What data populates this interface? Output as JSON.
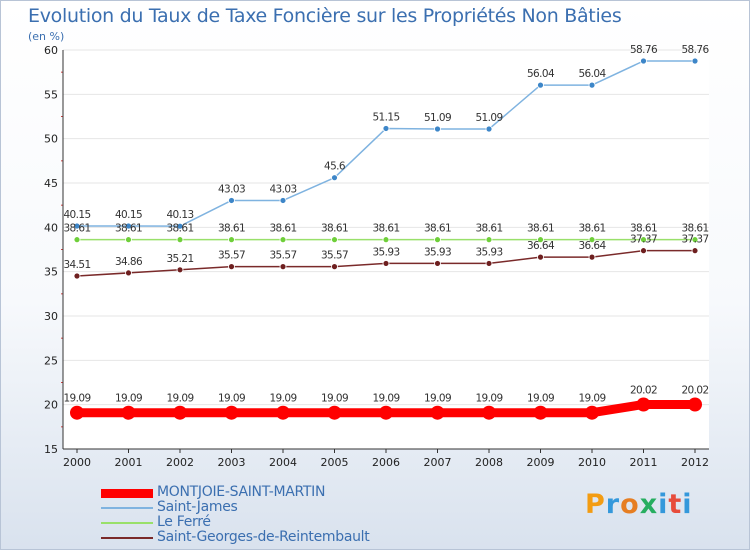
{
  "chart_data": {
    "type": "line",
    "title": "Evolution du Taux de Taxe Foncière sur les Propriétés Non Bâties",
    "ylabel": "(en %)",
    "xlabel": "",
    "ylim": [
      15,
      60
    ],
    "yticks": [
      15,
      20,
      25,
      30,
      35,
      40,
      45,
      50,
      55,
      60
    ],
    "categories": [
      "2000",
      "2001",
      "2002",
      "2003",
      "2004",
      "2005",
      "2006",
      "2007",
      "2008",
      "2009",
      "2010",
      "2011",
      "2012"
    ],
    "series": [
      {
        "name": "MONTJOIE-SAINT-MARTIN",
        "color": "#ff0000",
        "emphasis": true,
        "values": [
          19.09,
          19.09,
          19.09,
          19.09,
          19.09,
          19.09,
          19.09,
          19.09,
          19.09,
          19.09,
          19.09,
          20.02,
          20.02
        ],
        "labels": [
          "19.09",
          "19.09",
          "19.09",
          "19.09",
          "19.09",
          "19.09",
          "19.09",
          "19.09",
          "19.09",
          "19.09",
          "19.09",
          "20.02",
          "20.02"
        ]
      },
      {
        "name": "Saint-James",
        "color": "#7fb3e0",
        "marker": "#3d86c8",
        "values": [
          40.15,
          40.15,
          40.13,
          43.03,
          43.03,
          45.6,
          51.15,
          51.09,
          51.09,
          56.04,
          56.04,
          58.76,
          58.76
        ],
        "labels": [
          "40.15",
          "40.15",
          "40.13",
          "43.03",
          "43.03",
          "45.6",
          "51.15",
          "51.09",
          "51.09",
          "56.04",
          "56.04",
          "58.76",
          "58.76"
        ]
      },
      {
        "name": "Le Ferré",
        "color": "#99e06a",
        "marker": "#6fcf3a",
        "values": [
          38.61,
          38.61,
          38.61,
          38.61,
          38.61,
          38.61,
          38.61,
          38.61,
          38.61,
          38.61,
          38.61,
          38.61,
          38.61
        ],
        "labels": [
          "38.61",
          "38.61",
          "38.61",
          "38.61",
          "38.61",
          "38.61",
          "38.61",
          "38.61",
          "38.61",
          "38.61",
          "38.61",
          "38.61",
          "38.61"
        ]
      },
      {
        "name": "Saint-Georges-de-Reintembault",
        "color": "#7a2a2a",
        "marker": "#6e1f1f",
        "values": [
          34.51,
          34.86,
          35.21,
          35.57,
          35.57,
          35.57,
          35.93,
          35.93,
          35.93,
          36.64,
          36.64,
          37.37,
          37.37
        ],
        "labels": [
          "34.51",
          "34.86",
          "35.21",
          "35.57",
          "35.57",
          "35.57",
          "35.93",
          "35.93",
          "35.93",
          "36.64",
          "36.64",
          "37.37",
          "37.37"
        ]
      }
    ]
  },
  "logo": {
    "text": "Proxiti",
    "letters": [
      "P",
      "r",
      "o",
      "x",
      "i",
      "t",
      "i"
    ],
    "colors": [
      "#f39c12",
      "#3498db",
      "#e67e22",
      "#27ae60",
      "#3498db",
      "#e74c3c",
      "#3498db"
    ]
  }
}
